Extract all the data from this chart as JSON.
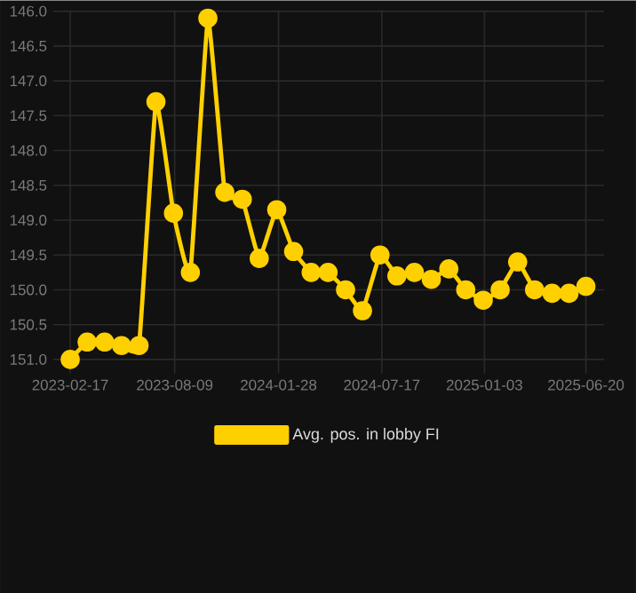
{
  "chart_data": {
    "type": "line",
    "x": [
      "2023-02-17",
      "2023-03-17",
      "2023-04-15",
      "2023-05-13",
      "2023-06-11",
      "2023-07-09",
      "2023-08-07",
      "2023-09-04",
      "2023-10-03",
      "2023-10-31",
      "2023-11-29",
      "2023-12-27",
      "2024-01-25",
      "2024-02-22",
      "2024-03-22",
      "2024-04-19",
      "2024-05-18",
      "2024-06-15",
      "2024-07-14",
      "2024-08-11",
      "2024-09-09",
      "2024-10-07",
      "2024-11-05",
      "2024-12-03",
      "2025-01-01",
      "2025-01-29",
      "2025-02-27",
      "2025-03-27",
      "2025-04-25",
      "2025-05-23",
      "2025-06-20"
    ],
    "series": [
      {
        "name": "Avg. pos. in lobby FI",
        "color": "#ffd000",
        "values": [
          151.0,
          150.75,
          150.75,
          150.8,
          150.8,
          147.3,
          148.9,
          149.75,
          146.1,
          148.6,
          148.7,
          149.55,
          148.85,
          149.45,
          149.75,
          149.75,
          150.0,
          150.3,
          149.5,
          149.8,
          149.75,
          149.85,
          149.7,
          150.0,
          150.15,
          150.0,
          149.6,
          150.0,
          150.05,
          150.05,
          149.95
        ]
      }
    ],
    "xlim": [
      "2023-01-20",
      "2025-07-20"
    ],
    "xticks": [
      "2023-02-17",
      "2023-08-09",
      "2024-01-28",
      "2024-07-17",
      "2025-01-03",
      "2025-06-20"
    ],
    "ylim": [
      151.2,
      146.0
    ],
    "yticks": [
      {
        "value": 146.0,
        "label": "146.0"
      },
      {
        "value": 146.5,
        "label": "146.5"
      },
      {
        "value": 147.0,
        "label": "147.0"
      },
      {
        "value": 147.5,
        "label": "147.5"
      },
      {
        "value": 148.0,
        "label": "148.0"
      },
      {
        "value": 148.5,
        "label": "148.5"
      },
      {
        "value": 149.0,
        "label": "149.0"
      },
      {
        "value": 149.5,
        "label": "149.5"
      },
      {
        "value": 150.0,
        "label": "150.0"
      },
      {
        "value": 150.5,
        "label": "150.5"
      },
      {
        "value": 151.0,
        "label": "151.0"
      }
    ],
    "grid": true,
    "legend": "bottom",
    "marker": "circle",
    "line_style": "solid"
  }
}
